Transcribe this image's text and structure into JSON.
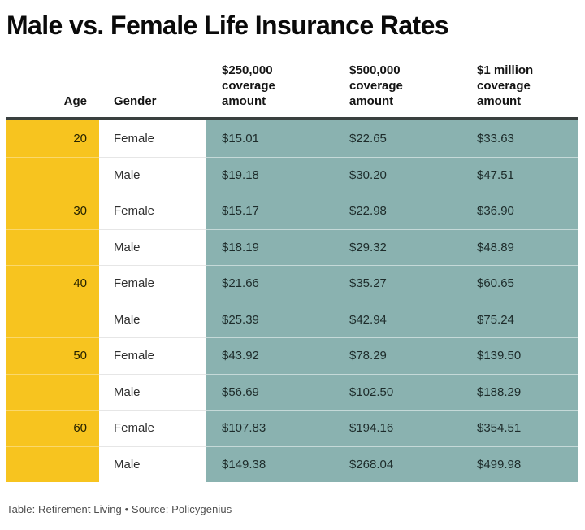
{
  "title": "Male vs. Female Life Insurance Rates",
  "colors": {
    "age_column": "#f7c41f",
    "data_columns": "#8ab2b0",
    "header_rule": "#3a403f",
    "background": "#ffffff"
  },
  "table": {
    "headers": {
      "age": "Age",
      "gender": "Gender",
      "c250": "$250,000\ncoverage\namount",
      "c500": "$500,000\ncoverage\namount",
      "c1m": "$1 million\ncoverage\namount"
    },
    "rows": [
      {
        "age": "20",
        "gender": "Female",
        "v250": "$15.01",
        "v500": "$22.65",
        "v1m": "$33.63"
      },
      {
        "age": "",
        "gender": "Male",
        "v250": "$19.18",
        "v500": "$30.20",
        "v1m": "$47.51"
      },
      {
        "age": "30",
        "gender": "Female",
        "v250": "$15.17",
        "v500": "$22.98",
        "v1m": "$36.90"
      },
      {
        "age": "",
        "gender": "Male",
        "v250": "$18.19",
        "v500": "$29.32",
        "v1m": "$48.89"
      },
      {
        "age": "40",
        "gender": "Female",
        "v250": "$21.66",
        "v500": "$35.27",
        "v1m": "$60.65"
      },
      {
        "age": "",
        "gender": "Male",
        "v250": "$25.39",
        "v500": "$42.94",
        "v1m": "$75.24"
      },
      {
        "age": "50",
        "gender": "Female",
        "v250": "$43.92",
        "v500": "$78.29",
        "v1m": "$139.50"
      },
      {
        "age": "",
        "gender": "Male",
        "v250": "$56.69",
        "v500": "$102.50",
        "v1m": "$188.29"
      },
      {
        "age": "60",
        "gender": "Female",
        "v250": "$107.83",
        "v500": "$194.16",
        "v1m": "$354.51"
      },
      {
        "age": "",
        "gender": "Male",
        "v250": "$149.38",
        "v500": "$268.04",
        "v1m": "$499.98"
      }
    ]
  },
  "footer": "Table: Retirement Living • Source: Policygenius",
  "chart_data": {
    "type": "table",
    "title": "Male vs. Female Life Insurance Rates",
    "columns": [
      "Age",
      "Gender",
      "$250,000 coverage amount",
      "$500,000 coverage amount",
      "$1 million coverage amount"
    ],
    "rows": [
      [
        20,
        "Female",
        15.01,
        22.65,
        33.63
      ],
      [
        20,
        "Male",
        19.18,
        30.2,
        47.51
      ],
      [
        30,
        "Female",
        15.17,
        22.98,
        36.9
      ],
      [
        30,
        "Male",
        18.19,
        29.32,
        48.89
      ],
      [
        40,
        "Female",
        21.66,
        35.27,
        60.65
      ],
      [
        40,
        "Male",
        25.39,
        42.94,
        75.24
      ],
      [
        50,
        "Female",
        43.92,
        78.29,
        139.5
      ],
      [
        50,
        "Male",
        56.69,
        102.5,
        188.29
      ],
      [
        60,
        "Female",
        107.83,
        194.16,
        354.51
      ],
      [
        60,
        "Male",
        149.38,
        268.04,
        499.98
      ]
    ],
    "table_credit": "Retirement Living",
    "source": "Policygenius"
  }
}
